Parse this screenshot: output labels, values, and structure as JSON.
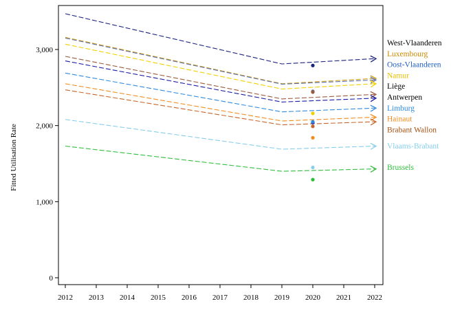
{
  "chart_data": {
    "type": "line",
    "ylabel": "Fitted Utilisation Rate",
    "x_ticks": [
      "2012",
      "2013",
      "2014",
      "2015",
      "2016",
      "2017",
      "2018",
      "2019",
      "2020",
      "2021",
      "2022"
    ],
    "y_ticks": [
      {
        "value": 0,
        "label": "0"
      },
      {
        "value": 1000,
        "label": "1,000"
      },
      {
        "value": 2000,
        "label": "2,000"
      },
      {
        "value": 3000,
        "label": "3,000"
      }
    ],
    "xlim": [
      2012,
      2022
    ],
    "ylim": [
      -100,
      3600
    ],
    "grid": false,
    "legend": "right, labels at line ends",
    "series": [
      {
        "name": "West-Vlaanderen",
        "color": "#1a237e",
        "label_color": "#000000",
        "values": [
          [
            2012,
            3470
          ],
          [
            2019,
            2810
          ],
          [
            2022,
            2880
          ]
        ],
        "observed_2020": 2790
      },
      {
        "name": "Luxembourg",
        "color": "#d4a017",
        "label_color": "#c98a00",
        "values": [
          [
            2012,
            3160
          ],
          [
            2019,
            2550
          ],
          [
            2022,
            2620
          ]
        ],
        "observed_2020": null
      },
      {
        "name": "Oost-Vlaanderen",
        "color": "#5f6fa8",
        "label_color": "#1f5fc4",
        "values": [
          [
            2012,
            3150
          ],
          [
            2019,
            2545
          ],
          [
            2022,
            2600
          ]
        ],
        "observed_2020": 2450
      },
      {
        "name": "Namur",
        "color": "#f2d000",
        "label_color": "#e8c000",
        "values": [
          [
            2012,
            3070
          ],
          [
            2019,
            2480
          ],
          [
            2022,
            2550
          ]
        ],
        "observed_2020": 2160
      },
      {
        "name": "Liège",
        "color": "#9b5a3c",
        "label_color": "#000000",
        "values": [
          [
            2012,
            2910
          ],
          [
            2019,
            2350
          ],
          [
            2022,
            2410
          ]
        ],
        "observed_2020": 2440
      },
      {
        "name": "Antwerpen",
        "color": "#1a1aa8",
        "label_color": "#000000",
        "values": [
          [
            2012,
            2850
          ],
          [
            2019,
            2310
          ],
          [
            2022,
            2360
          ]
        ],
        "observed_2020": 2040
      },
      {
        "name": "Limburg",
        "color": "#2f8ae0",
        "label_color": "#2f8ae0",
        "values": [
          [
            2012,
            2690
          ],
          [
            2019,
            2180
          ],
          [
            2022,
            2230
          ]
        ],
        "observed_2020": 2050
      },
      {
        "name": "Hainaut",
        "color": "#f28c1e",
        "label_color": "#f28c1e",
        "values": [
          [
            2012,
            2550
          ],
          [
            2019,
            2060
          ],
          [
            2022,
            2110
          ]
        ],
        "observed_2020": 1840
      },
      {
        "name": "Brabant Wallon",
        "color": "#c8642a",
        "label_color": "#a85012",
        "values": [
          [
            2012,
            2470
          ],
          [
            2019,
            2010
          ],
          [
            2022,
            2050
          ]
        ],
        "observed_2020": 1990
      },
      {
        "name": "Vlaams-Brabant",
        "color": "#87ceeb",
        "label_color": "#87ceeb",
        "values": [
          [
            2012,
            2080
          ],
          [
            2019,
            1690
          ],
          [
            2022,
            1730
          ]
        ],
        "observed_2020": 1450
      },
      {
        "name": "Brussels",
        "color": "#2ebd3c",
        "label_color": "#2ebd3c",
        "values": [
          [
            2012,
            1730
          ],
          [
            2019,
            1400
          ],
          [
            2022,
            1430
          ]
        ],
        "observed_2020": 1290
      }
    ]
  }
}
